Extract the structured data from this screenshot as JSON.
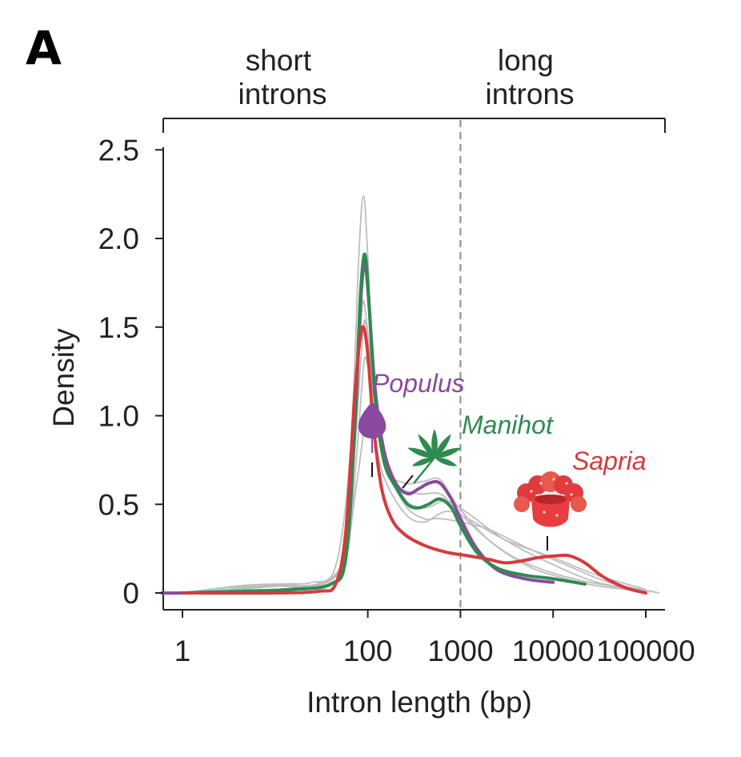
{
  "figure": {
    "panel_label": "A",
    "bracket_labels": [
      {
        "lines": [
          "short",
          "introns"
        ]
      },
      {
        "lines": [
          "long",
          "introns"
        ]
      }
    ]
  },
  "chart_data": {
    "type": "line",
    "xlabel": "Intron length (bp)",
    "ylabel": "Density",
    "xscale": "log10",
    "xlim": [
      0.6,
      140000
    ],
    "ylim": [
      0,
      2.5
    ],
    "x_ticks": [
      1,
      100,
      1000,
      10000,
      100000
    ],
    "x_tick_labels": [
      "1",
      "100",
      "1000",
      "10000",
      "100000"
    ],
    "y_ticks": [
      0,
      0.5,
      1.0,
      1.5,
      2.0,
      2.5
    ],
    "y_tick_labels": [
      "0",
      "0.5",
      "1.0",
      "1.5",
      "2.0",
      "2.5"
    ],
    "vline": {
      "x": 1000,
      "style": "dashed",
      "color": "#8a8a8a"
    },
    "grid": false,
    "colors": {
      "gray": "#bdbdbd",
      "populus": "#8a4a9e",
      "manihot": "#2e8b4f",
      "sapria": "#d63a3c"
    },
    "background_series": [
      {
        "color": "#bdbdbd",
        "points": [
          [
            1,
            0
          ],
          [
            3,
            0.02
          ],
          [
            12,
            0.05
          ],
          [
            25,
            0.06
          ],
          [
            45,
            0.15
          ],
          [
            65,
            0.8
          ],
          [
            80,
            1.9
          ],
          [
            90,
            2.24
          ],
          [
            100,
            1.9
          ],
          [
            120,
            1.05
          ],
          [
            160,
            0.7
          ],
          [
            250,
            0.62
          ],
          [
            400,
            0.63
          ],
          [
            600,
            0.64
          ],
          [
            900,
            0.5
          ],
          [
            2000,
            0.3
          ],
          [
            5000,
            0.16
          ],
          [
            10000,
            0.1
          ],
          [
            30000,
            0.04
          ],
          [
            100000,
            0.01
          ]
        ]
      },
      {
        "color": "#bdbdbd",
        "points": [
          [
            1,
            0
          ],
          [
            3,
            0.02
          ],
          [
            10,
            0.04
          ],
          [
            30,
            0.05
          ],
          [
            55,
            0.2
          ],
          [
            72,
            0.9
          ],
          [
            85,
            1.55
          ],
          [
            92,
            1.63
          ],
          [
            105,
            1.35
          ],
          [
            130,
            0.9
          ],
          [
            200,
            0.62
          ],
          [
            350,
            0.56
          ],
          [
            600,
            0.56
          ],
          [
            900,
            0.47
          ],
          [
            2000,
            0.3
          ],
          [
            5000,
            0.17
          ],
          [
            20000,
            0.07
          ],
          [
            100000,
            0.01
          ]
        ]
      },
      {
        "color": "#bdbdbd",
        "points": [
          [
            1,
            0
          ],
          [
            3,
            0.03
          ],
          [
            10,
            0.04
          ],
          [
            30,
            0.04
          ],
          [
            55,
            0.2
          ],
          [
            72,
            0.8
          ],
          [
            88,
            1.45
          ],
          [
            95,
            1.52
          ],
          [
            108,
            1.3
          ],
          [
            140,
            0.8
          ],
          [
            220,
            0.55
          ],
          [
            400,
            0.48
          ],
          [
            700,
            0.52
          ],
          [
            1200,
            0.45
          ],
          [
            3000,
            0.3
          ],
          [
            10000,
            0.16
          ],
          [
            30000,
            0.06
          ],
          [
            100000,
            0.01
          ]
        ]
      },
      {
        "color": "#bdbdbd",
        "points": [
          [
            1,
            0
          ],
          [
            4,
            0.04
          ],
          [
            10,
            0.05
          ],
          [
            28,
            0.05
          ],
          [
            55,
            0.18
          ],
          [
            75,
            0.6
          ],
          [
            92,
            0.93
          ],
          [
            100,
            0.97
          ],
          [
            115,
            0.9
          ],
          [
            150,
            0.65
          ],
          [
            250,
            0.45
          ],
          [
            400,
            0.4
          ],
          [
            700,
            0.46
          ],
          [
            1200,
            0.42
          ],
          [
            3000,
            0.3
          ],
          [
            10000,
            0.2
          ],
          [
            30000,
            0.1
          ],
          [
            100000,
            0.02
          ]
        ]
      },
      {
        "color": "#bdbdbd",
        "points": [
          [
            1,
            0
          ],
          [
            4,
            0.02
          ],
          [
            12,
            0.04
          ],
          [
            30,
            0.05
          ],
          [
            58,
            0.2
          ],
          [
            75,
            0.75
          ],
          [
            90,
            1.28
          ],
          [
            98,
            1.3
          ],
          [
            112,
            1.15
          ],
          [
            150,
            0.75
          ],
          [
            250,
            0.5
          ],
          [
            400,
            0.42
          ],
          [
            600,
            0.42
          ],
          [
            1000,
            0.4
          ],
          [
            2000,
            0.36
          ],
          [
            5000,
            0.26
          ],
          [
            15000,
            0.15
          ],
          [
            40000,
            0.06
          ],
          [
            140000,
            0.0
          ]
        ]
      }
    ],
    "series": [
      {
        "name": "Populus",
        "color": "#8a4a9e",
        "points": [
          [
            0.6,
            0
          ],
          [
            1,
            0
          ],
          [
            5,
            0.01
          ],
          [
            15,
            0.02
          ],
          [
            40,
            0.05
          ],
          [
            58,
            0.2
          ],
          [
            72,
            0.9
          ],
          [
            83,
            1.6
          ],
          [
            90,
            1.84
          ],
          [
            96,
            1.82
          ],
          [
            104,
            1.6
          ],
          [
            120,
            1.15
          ],
          [
            150,
            0.8
          ],
          [
            200,
            0.62
          ],
          [
            270,
            0.56
          ],
          [
            360,
            0.59
          ],
          [
            460,
            0.62
          ],
          [
            600,
            0.62
          ],
          [
            800,
            0.53
          ],
          [
            1000,
            0.42
          ],
          [
            1500,
            0.25
          ],
          [
            2500,
            0.13
          ],
          [
            5000,
            0.08
          ],
          [
            10000,
            0.06
          ]
        ]
      },
      {
        "name": "Manihot",
        "color": "#2e8b4f",
        "points": [
          [
            1,
            0
          ],
          [
            5,
            0.01
          ],
          [
            15,
            0.02
          ],
          [
            40,
            0.05
          ],
          [
            58,
            0.2
          ],
          [
            72,
            0.95
          ],
          [
            83,
            1.66
          ],
          [
            90,
            1.89
          ],
          [
            96,
            1.87
          ],
          [
            104,
            1.6
          ],
          [
            120,
            1.1
          ],
          [
            150,
            0.74
          ],
          [
            200,
            0.6
          ],
          [
            270,
            0.5
          ],
          [
            350,
            0.48
          ],
          [
            450,
            0.5
          ],
          [
            600,
            0.53
          ],
          [
            800,
            0.48
          ],
          [
            1000,
            0.38
          ],
          [
            1500,
            0.23
          ],
          [
            2500,
            0.14
          ],
          [
            5000,
            0.1
          ],
          [
            10000,
            0.08
          ],
          [
            22000,
            0.05
          ]
        ]
      },
      {
        "name": "Sapria",
        "color": "#d63a3c",
        "points": [
          [
            1,
            0
          ],
          [
            10,
            0
          ],
          [
            30,
            0.01
          ],
          [
            45,
            0.05
          ],
          [
            58,
            0.35
          ],
          [
            72,
            1.1
          ],
          [
            82,
            1.42
          ],
          [
            90,
            1.5
          ],
          [
            100,
            1.35
          ],
          [
            115,
            0.95
          ],
          [
            140,
            0.6
          ],
          [
            180,
            0.42
          ],
          [
            250,
            0.33
          ],
          [
            400,
            0.27
          ],
          [
            700,
            0.23
          ],
          [
            1200,
            0.21
          ],
          [
            2000,
            0.19
          ],
          [
            3000,
            0.17
          ],
          [
            4500,
            0.18
          ],
          [
            7000,
            0.2
          ],
          [
            11000,
            0.21
          ],
          [
            15000,
            0.21
          ],
          [
            22000,
            0.17
          ],
          [
            35000,
            0.09
          ],
          [
            60000,
            0.03
          ],
          [
            100000,
            0.0
          ]
        ]
      }
    ],
    "annotations": [
      {
        "text": "Populus",
        "color": "#8a4a9e",
        "icon": "poplar-leaf-icon",
        "marker_x": 450,
        "marker_y": 0.62
      },
      {
        "text": "Manihot",
        "color": "#2e8b4f",
        "icon": "cassava-leaf-icon",
        "marker_x": 800,
        "marker_y": 0.62
      },
      {
        "text": "Sapria",
        "color": "#d63a3c",
        "icon": "sapria-flower-icon",
        "marker_x": 13500,
        "marker_y": 0.22
      }
    ]
  }
}
